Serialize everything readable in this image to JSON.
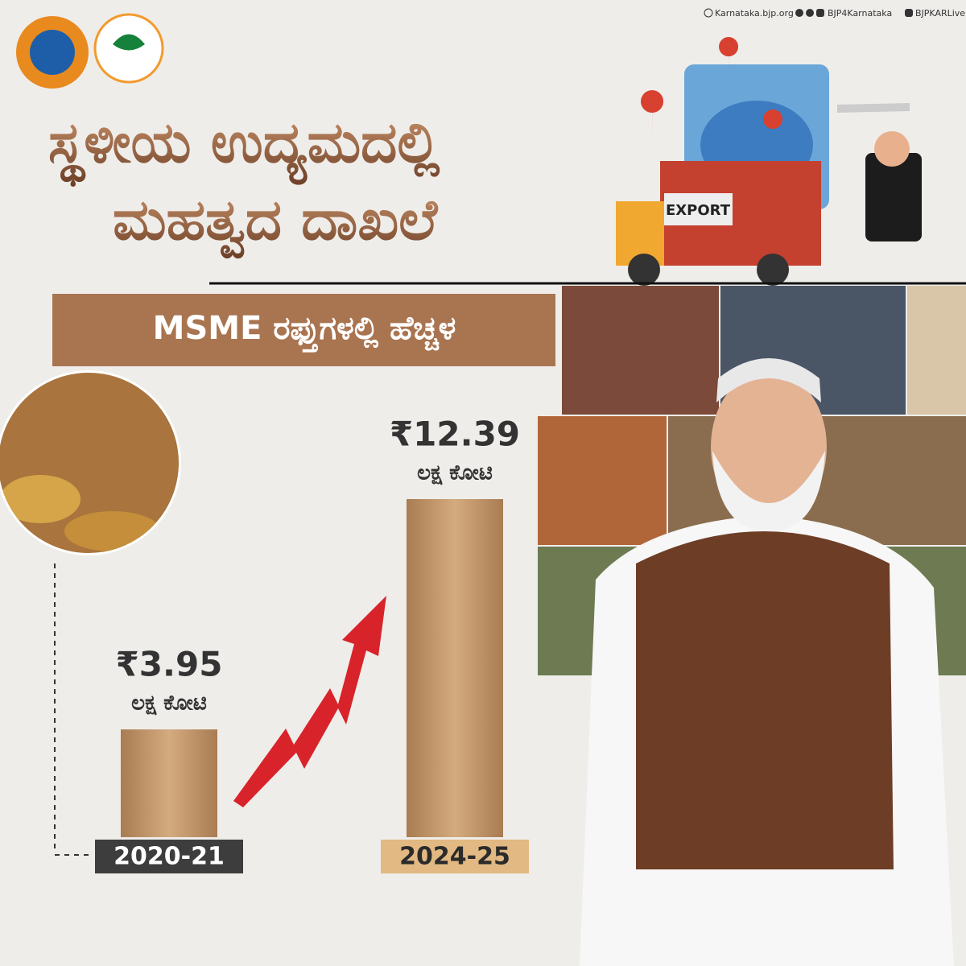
{
  "header": {
    "website": "Karnataka.bjp.org",
    "handle": "BJP4Karnataka",
    "live": "BJPKARLive"
  },
  "illustration": {
    "truck_label": "EXPORT"
  },
  "chart_data": {
    "type": "bar",
    "title": [
      "ಸ್ಥಳೀಯ ಉದ್ಯಮದಲ್ಲಿ",
      "ಮಹತ್ವದ ದಾಖಲೆ"
    ],
    "subtitle": "MSME ರಫ್ತುಗಳಲ್ಲಿ ಹೆಚ್ಚಳ",
    "unit": "ಲಕ್ಷ ಕೋಟಿ",
    "categories": [
      "2020-21",
      "2024-25"
    ],
    "values": [
      3.95,
      12.39
    ],
    "value_labels": [
      "₹3.95",
      "₹12.39"
    ],
    "color": "#c49a6c",
    "label_colors": [
      "#3d3d3d",
      "#e2b982"
    ]
  }
}
